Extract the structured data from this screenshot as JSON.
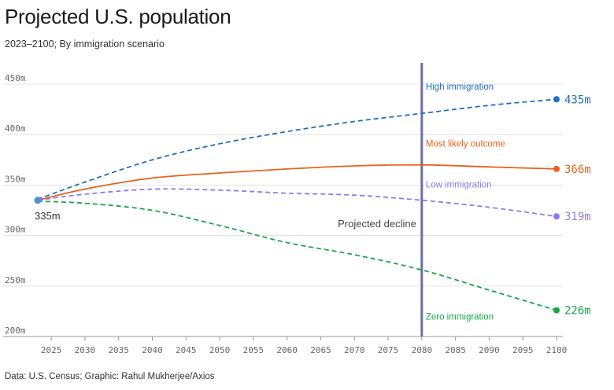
{
  "header": {
    "title": "Projected U.S. population",
    "subtitle": "2023–2100; By immigration scenario"
  },
  "footer": {
    "source": "Data: U.S. Census; Graphic: Rahul Mukherjee/Axios"
  },
  "chart_data": {
    "type": "line",
    "xlim": [
      2023,
      2100
    ],
    "ylim": [
      200,
      460
    ],
    "x_ticks": [
      2025,
      2030,
      2035,
      2040,
      2045,
      2050,
      2055,
      2060,
      2065,
      2070,
      2075,
      2080,
      2085,
      2090,
      2095,
      2100
    ],
    "y_ticks": [
      200,
      250,
      300,
      350,
      400,
      450
    ],
    "y_tick_suffix": "m",
    "grid": "horizontal",
    "start_point": {
      "x": 2023,
      "y": 335,
      "label": "335m",
      "color": "#4a90d9"
    },
    "vline": {
      "x": 2080,
      "label": "Projected decline",
      "color": "#6b6f9e"
    },
    "series": [
      {
        "name": "High immigration",
        "color": "#1f6fc5",
        "dash": true,
        "end_label": "435m",
        "x": [
          2023,
          2030,
          2040,
          2050,
          2060,
          2070,
          2080,
          2090,
          2100
        ],
        "y": [
          336,
          353,
          375,
          391,
          403,
          413,
          421,
          429,
          435
        ]
      },
      {
        "name": "Most likely outcome",
        "color": "#e8621c",
        "dash": false,
        "end_label": "366m",
        "x": [
          2023,
          2030,
          2040,
          2050,
          2060,
          2070,
          2080,
          2090,
          2100
        ],
        "y": [
          335,
          346,
          357,
          362,
          366,
          369,
          370,
          368,
          366
        ]
      },
      {
        "name": "Low immigration",
        "color": "#8b7cf0",
        "dash": true,
        "end_label": "319m",
        "x": [
          2023,
          2030,
          2040,
          2050,
          2060,
          2070,
          2080,
          2090,
          2100
        ],
        "y": [
          335,
          341,
          346,
          345,
          342,
          340,
          335,
          328,
          319
        ]
      },
      {
        "name": "Zero immigration",
        "color": "#19a64a",
        "dash": true,
        "end_label": "226m",
        "x": [
          2023,
          2030,
          2040,
          2050,
          2060,
          2070,
          2080,
          2090,
          2100
        ],
        "y": [
          334,
          332,
          325,
          310,
          293,
          281,
          266,
          246,
          226
        ]
      }
    ]
  }
}
